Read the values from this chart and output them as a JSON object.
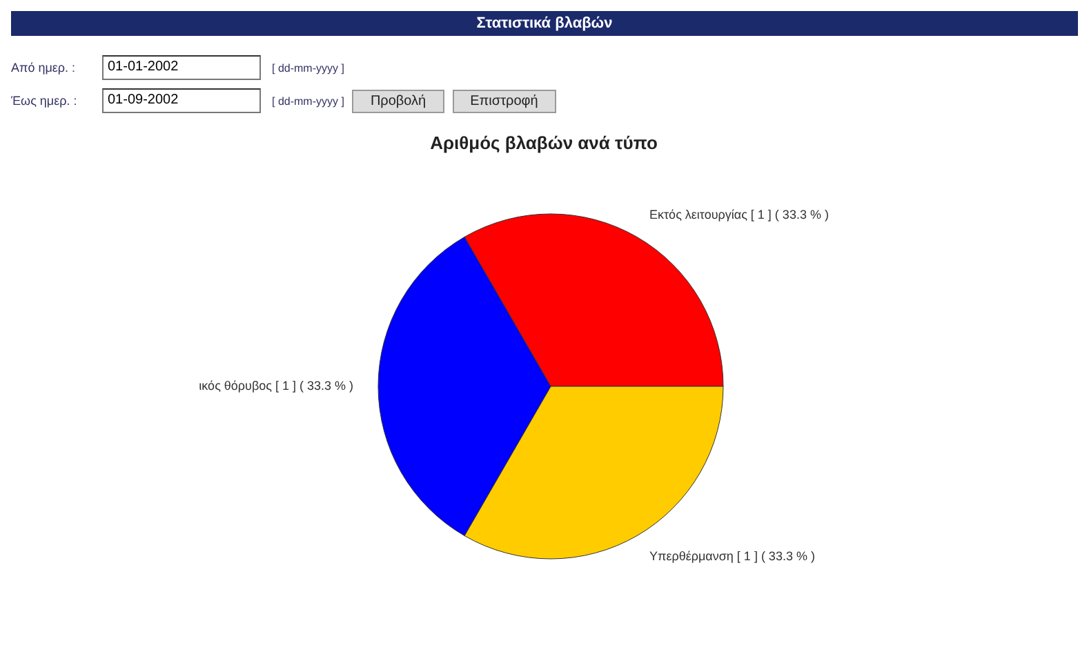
{
  "chart_data": {
    "type": "pie",
    "title": "Αριθμός βλαβών ανά τύπο",
    "categories": [
      "Εκτός λειτουργίας",
      "Υπερθέρμανση",
      "ικός θόρυβος"
    ],
    "values": [
      1,
      1,
      1
    ],
    "value_labels": [
      "[ 1 ] ( 33.3 % )",
      "[ 1 ] ( 33.3 % )",
      "[ 1 ] ( 33.3 % )"
    ],
    "colors": [
      "#ff0000",
      "#ffcc00",
      "#0000ff"
    ],
    "legend": false,
    "annotations": [
      "Στατιστικά βλαβών",
      "Από ημερ. :",
      "01-01-2002",
      "[ dd-mm-yyyy ]",
      "Έως ημερ. :",
      "01-09-2002",
      "[ dd-mm-yyyy ]",
      "Προβολή",
      "Επιστροφή"
    ]
  }
}
